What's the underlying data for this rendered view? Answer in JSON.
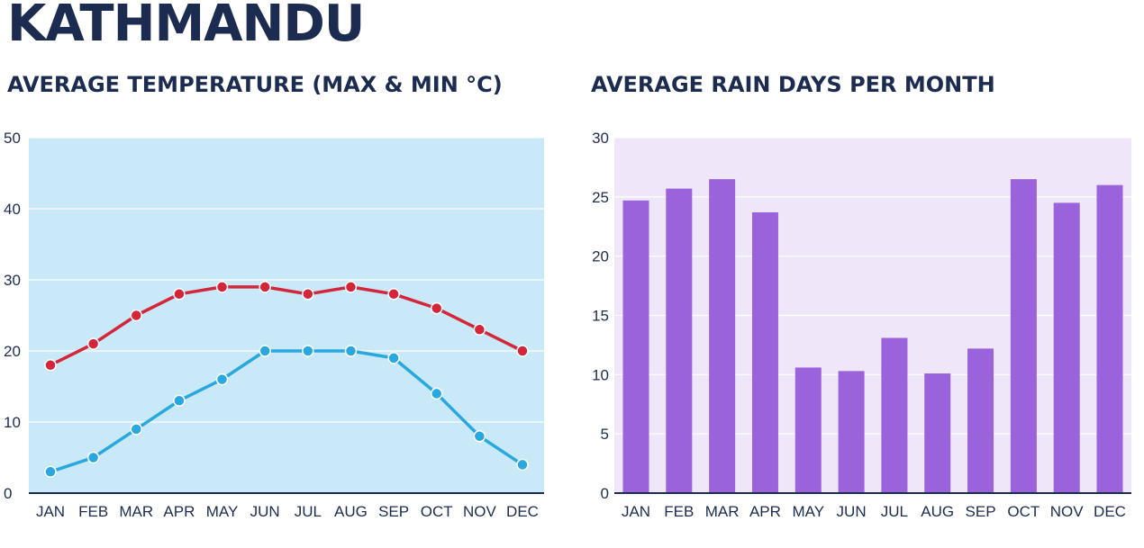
{
  "header": {
    "city": "KATHMANDU"
  },
  "chart_data": [
    {
      "type": "line",
      "title": "AVERAGE TEMPERATURE (MAX & MIN °C)",
      "categories": [
        "JAN",
        "FEB",
        "MAR",
        "APR",
        "MAY",
        "JUN",
        "JUL",
        "AUG",
        "SEP",
        "OCT",
        "NOV",
        "DEC"
      ],
      "series": [
        {
          "name": "Max",
          "color": "#d3263a",
          "values": [
            18,
            21,
            25,
            28,
            29,
            29,
            28,
            29,
            28,
            26,
            23,
            20
          ]
        },
        {
          "name": "Min",
          "color": "#29a8e0",
          "values": [
            3,
            5,
            9,
            13,
            16,
            20,
            20,
            20,
            19,
            14,
            8,
            4
          ]
        }
      ],
      "ylim": [
        0,
        50
      ],
      "yticks": [
        0,
        10,
        20,
        30,
        40,
        50
      ],
      "grid": true,
      "background": "#c9e8f8"
    },
    {
      "type": "bar",
      "title": "AVERAGE RAIN DAYS PER MONTH",
      "categories": [
        "JAN",
        "FEB",
        "MAR",
        "APR",
        "MAY",
        "JUN",
        "JUL",
        "AUG",
        "SEP",
        "OCT",
        "NOV",
        "DEC"
      ],
      "values": [
        24.7,
        25.7,
        26.5,
        23.7,
        10.6,
        10.3,
        13.1,
        10.1,
        12.2,
        26.5,
        24.5,
        26.0
      ],
      "ylim": [
        0,
        30
      ],
      "yticks": [
        0,
        5,
        10,
        15,
        20,
        25,
        30
      ],
      "grid": true,
      "bar_color": "#9a63dc",
      "background": "#efe6f9"
    }
  ]
}
